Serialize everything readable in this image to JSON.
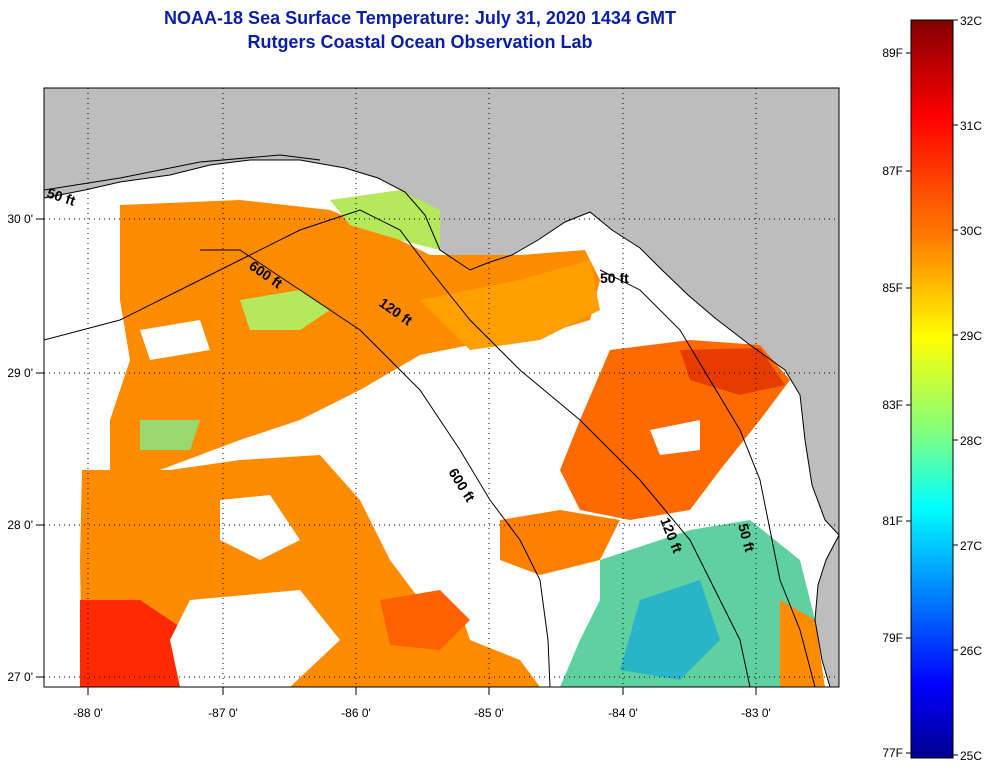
{
  "title": {
    "line1": "NOAA-18 Sea Surface Temperature:  July 31, 2020 1434 GMT",
    "line2": "Rutgers Coastal Ocean Observation Lab"
  },
  "axes": {
    "longitude_ticks": [
      "-88 0'",
      "-87 0'",
      "-86 0'",
      "-85 0'",
      "-84 0'",
      "-83 0'"
    ],
    "latitude_ticks": [
      "30 0'",
      "29 0'",
      "28 0'",
      "27 0'"
    ]
  },
  "contours": [
    "50 ft",
    "600 ft",
    "120 ft",
    "50 ft",
    "600 ft",
    "120 ft",
    "50 ft"
  ],
  "colorbar": {
    "fahrenheit": [
      "89F",
      "87F",
      "85F",
      "83F",
      "81F",
      "79F",
      "77F"
    ],
    "celsius": [
      "32C",
      "31C",
      "30C",
      "29C",
      "28C",
      "27C",
      "26C",
      "25C"
    ],
    "gradient": [
      "#800000",
      "#ff0000",
      "#ff8000",
      "#ffff00",
      "#80ff80",
      "#00ffff",
      "#0080ff",
      "#0000ff",
      "#00008f"
    ]
  },
  "colors": {
    "land": "#bdbdbd",
    "cloud": "#ffffff",
    "title": "#0a1ea8"
  }
}
